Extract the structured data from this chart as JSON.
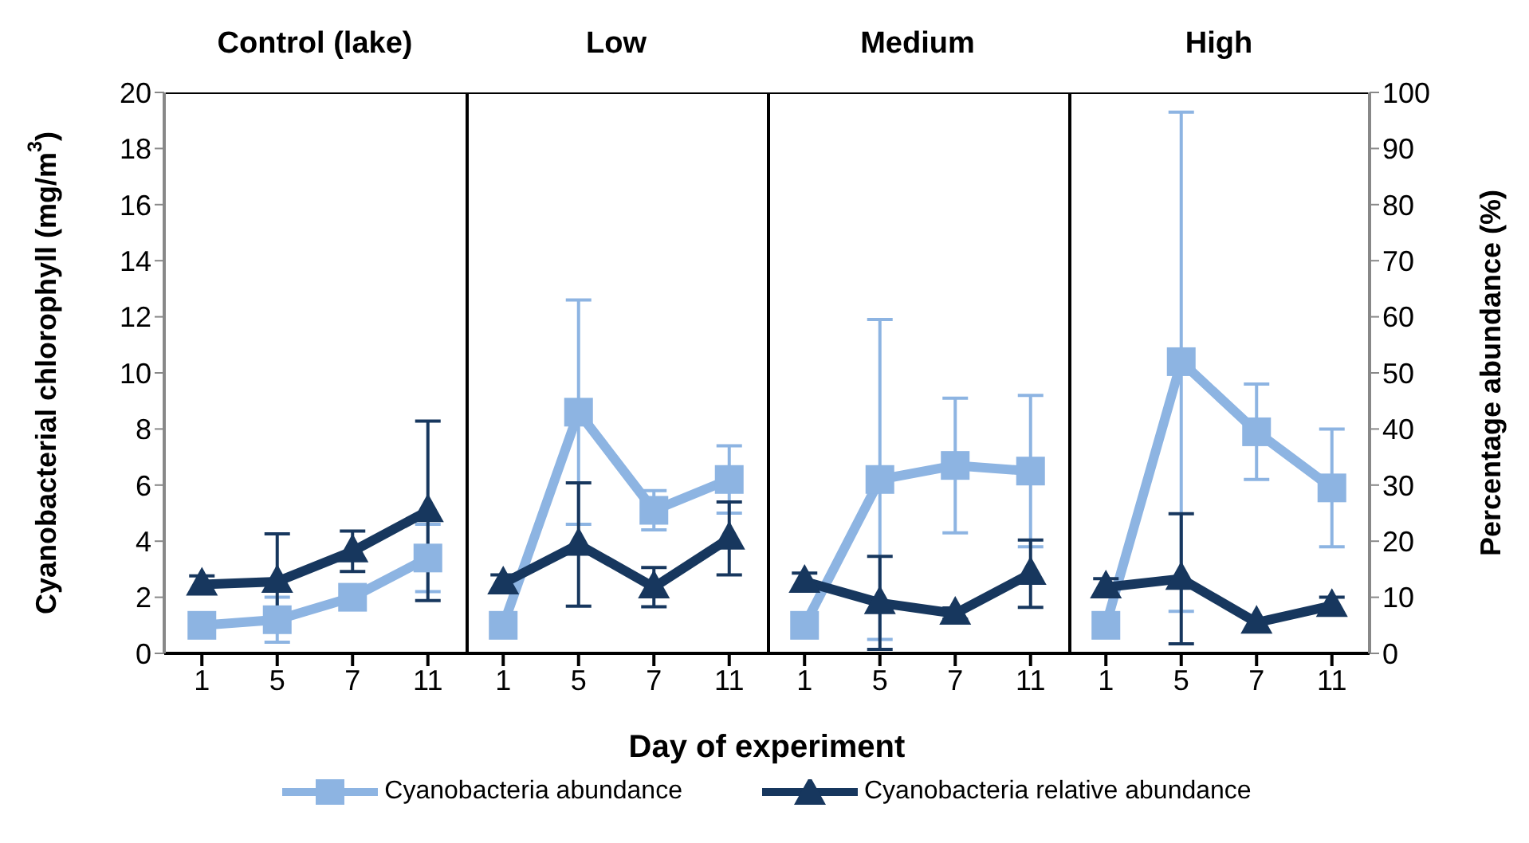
{
  "chart_data": [
    {
      "type": "line",
      "title": "Control (lake)",
      "categories": [
        "1",
        "5",
        "7",
        "11"
      ],
      "xlabel": "Day of experiment",
      "ylabel": "Cyanobacterial chlorophyll (mg/m$^{3}$)",
      "legend": "bottom",
      "line_style": "solid",
      "tick_labels": "xy",
      "ylim": [
        0,
        20
      ],
      "yticks": [
        0,
        2,
        4,
        6,
        8,
        10,
        12,
        14,
        16,
        18,
        20
      ],
      "y2lim": [
        0,
        100
      ],
      "series": [
        {
          "name": "Cyanobacteria abundance",
          "color": "#8db4e2",
          "marker": "square",
          "values": [
            1.0,
            1.2,
            2.0,
            3.4
          ],
          "errors": [
            null,
            0.8,
            null,
            1.2
          ]
        },
        {
          "name": "Cyanobacteria relative abundance",
          "color": "#17375e",
          "marker": "triangle",
          "axis": "y2",
          "values": [
            12.3,
            12.8,
            18.2,
            25.4
          ],
          "errors": [
            1.5,
            8.5,
            3.6,
            16
          ]
        }
      ]
    },
    {
      "type": "line",
      "title": "Low",
      "categories": [
        "1",
        "5",
        "7",
        "11"
      ],
      "line_style": "solid",
      "tick_labels": "x",
      "ylim": [
        0,
        20
      ],
      "y2lim": [
        0,
        100
      ],
      "series": [
        {
          "color": "#8db4e2",
          "marker": "square",
          "values": [
            1.0,
            8.6,
            5.1,
            6.2
          ],
          "errors": [
            null,
            4.0,
            0.7,
            1.2
          ]
        },
        {
          "color": "#17375e",
          "marker": "triangle",
          "axis": "y2",
          "values": [
            12.5,
            19.4,
            11.8,
            20.5
          ],
          "errors": [
            1.5,
            11,
            3.5,
            6.5
          ]
        }
      ]
    },
    {
      "type": "line",
      "title": "Medium",
      "categories": [
        "1",
        "5",
        "7",
        "11"
      ],
      "line_style": "solid",
      "tick_labels": "x",
      "ylim": [
        0,
        20
      ],
      "y2lim": [
        0,
        100
      ],
      "series": [
        {
          "color": "#8db4e2",
          "marker": "square",
          "values": [
            1.0,
            6.2,
            6.7,
            6.5
          ],
          "errors": [
            null,
            5.7,
            2.4,
            2.7
          ]
        },
        {
          "color": "#17375e",
          "marker": "triangle",
          "axis": "y2",
          "values": [
            12.8,
            9.0,
            7.1,
            14.2
          ],
          "errors": [
            1.5,
            8.3,
            1,
            6
          ]
        }
      ]
    },
    {
      "type": "line",
      "title": "High",
      "categories": [
        "1",
        "5",
        "7",
        "11"
      ],
      "y2label": "Percentage abundance (%)",
      "line_style": "solid",
      "tick_labels": "xy2",
      "ylim": [
        0,
        20
      ],
      "y2lim": [
        0,
        100
      ],
      "y2ticks": [
        0,
        10,
        20,
        30,
        40,
        50,
        60,
        70,
        80,
        90,
        100
      ],
      "series": [
        {
          "color": "#8db4e2",
          "marker": "square",
          "values": [
            1.0,
            10.4,
            7.9,
            5.9
          ],
          "errors": [
            null,
            8.9,
            1.7,
            2.1
          ]
        },
        {
          "color": "#17375e",
          "marker": "triangle",
          "axis": "y2",
          "values": [
            11.8,
            13.3,
            5.5,
            8.5
          ],
          "errors": [
            1.5,
            11.6,
            null,
            1.5
          ]
        }
      ]
    }
  ]
}
